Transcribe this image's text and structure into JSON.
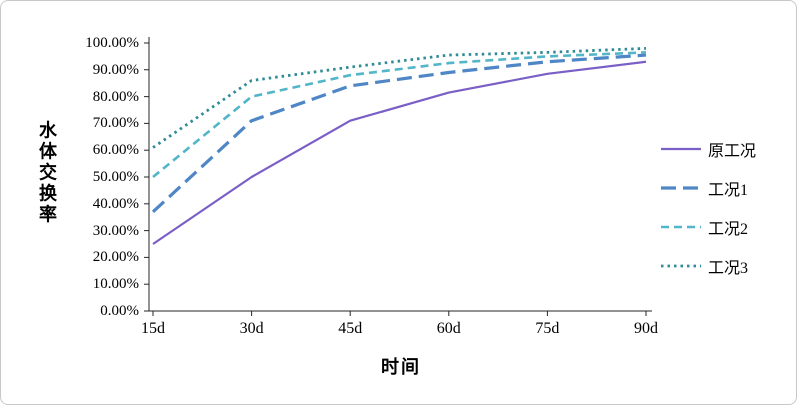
{
  "chart_data": {
    "type": "line",
    "title": "",
    "xlabel": "时间",
    "ylabel": "水体交换率",
    "x": [
      "15d",
      "30d",
      "45d",
      "60d",
      "75d",
      "90d"
    ],
    "ylim": [
      0,
      100
    ],
    "ytick_labels": [
      "0.00%",
      "10.00%",
      "20.00%",
      "30.00%",
      "40.00%",
      "50.00%",
      "60.00%",
      "70.00%",
      "80.00%",
      "90.00%",
      "100.00%"
    ],
    "grid": false,
    "legend_position": "right",
    "series": [
      {
        "name": "原工况",
        "style": "solid",
        "color": "#7a5fc6",
        "values": [
          25,
          50,
          71,
          81.5,
          88.5,
          93
        ]
      },
      {
        "name": "工况1",
        "style": "long-dash",
        "color": "#4e86c6",
        "values": [
          37,
          71,
          84,
          89,
          93,
          95.5
        ]
      },
      {
        "name": "工况2",
        "style": "dash",
        "color": "#52b5c9",
        "values": [
          50,
          80,
          88,
          92.5,
          95,
          96.5
        ]
      },
      {
        "name": "工况3",
        "style": "dot",
        "color": "#2e8c96",
        "values": [
          61,
          86,
          91,
          95.5,
          96.5,
          98
        ]
      }
    ]
  }
}
